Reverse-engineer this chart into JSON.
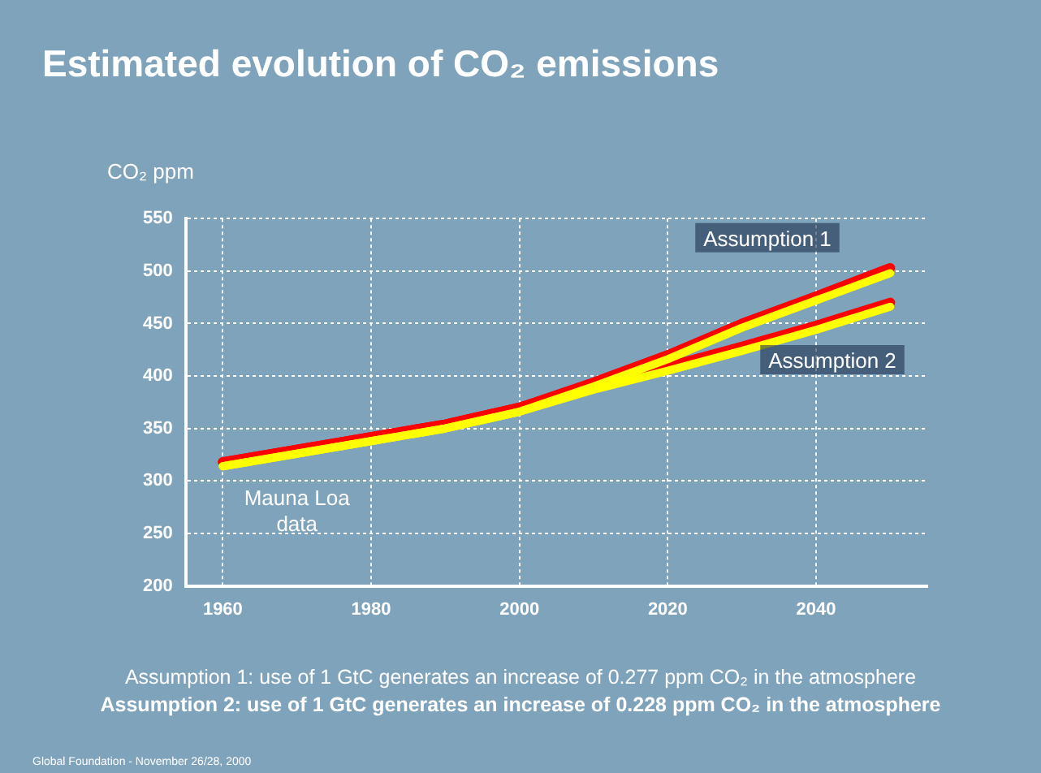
{
  "chart_data": {
    "type": "line",
    "title": "Estimated evolution of CO₂ emissions",
    "ylabel": "CO₂ ppm",
    "x": [
      1960,
      1970,
      1980,
      1990,
      2000,
      2010,
      2020,
      2030,
      2040,
      2050
    ],
    "series": [
      {
        "color": "#ffff00",
        "values": [
          314,
          326,
          338,
          350,
          366,
          390,
          416,
          446,
          472,
          498
        ]
      },
      {
        "color": "#ffff00",
        "values": [
          314,
          326,
          338,
          350,
          366,
          387,
          405,
          424,
          444,
          466
        ]
      },
      {
        "name": "Assumption 1",
        "color": "#ff0000",
        "values": [
          318,
          330,
          342,
          354,
          370,
          394,
          420,
          450,
          476,
          503
        ]
      },
      {
        "name": "Assumption 2",
        "color": "#ff0000",
        "values": [
          318,
          330,
          342,
          354,
          370,
          391,
          409,
          428,
          448,
          470
        ]
      }
    ],
    "xlim": [
      1955,
      2055
    ],
    "xticks": [
      1960,
      1980,
      2000,
      2020,
      2040
    ],
    "ylim": [
      200,
      550
    ],
    "yticks": [
      200,
      250,
      300,
      350,
      400,
      450,
      500,
      550
    ],
    "grid": true,
    "legend": false,
    "marker": "none",
    "line_style": "solid",
    "annotations": [
      "Mauna Loa data",
      "Assumption 1: use of 1 GtC generates an increase of 0.277 ppm CO₂ in the atmosphere",
      "Assumption 2: use of 1 GtC generates an increase of 0.228 ppm CO₂ in the atmosphere",
      "Global Foundation - November 26/28, 2000"
    ]
  }
}
